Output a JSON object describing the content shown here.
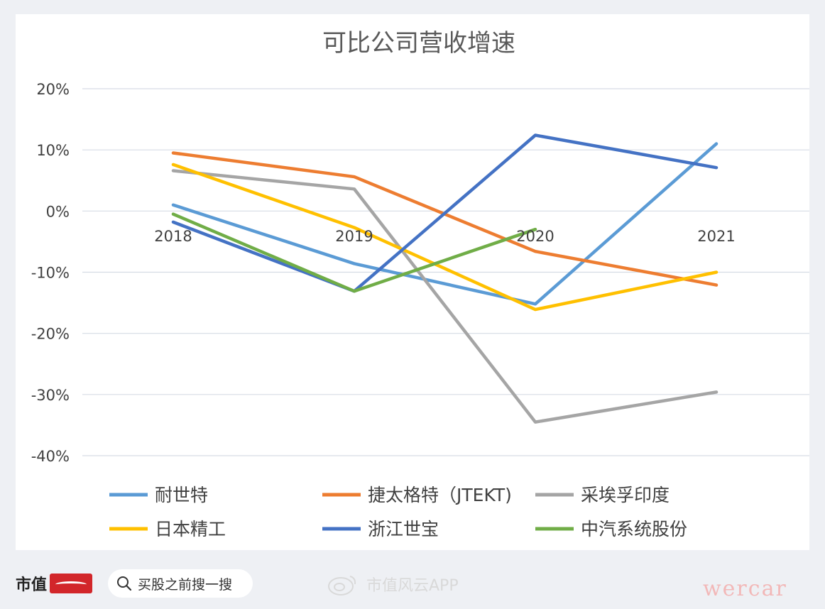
{
  "chart_data": {
    "type": "line",
    "title": "可比公司营收增速",
    "categories": [
      "2018",
      "2019",
      "2020",
      "2021"
    ],
    "ylim": [
      -40,
      20
    ],
    "yticks": [
      20,
      10,
      0,
      -10,
      -20,
      -30,
      -40
    ],
    "ytick_labels": [
      "20%",
      "10%",
      "0%",
      "-10%",
      "-20%",
      "-30%",
      "-40%"
    ],
    "grid": true,
    "legend_position": "bottom",
    "series": [
      {
        "name": "耐世特",
        "color": "#5b9bd5",
        "values": [
          1.0,
          -8.6,
          -15.2,
          11.0
        ]
      },
      {
        "name": "捷太格特（JTEKT)",
        "color": "#ed7d31",
        "values": [
          9.5,
          5.6,
          -6.6,
          -12.1
        ]
      },
      {
        "name": "采埃孚印度",
        "color": "#a5a5a5",
        "values": [
          6.6,
          3.6,
          -34.5,
          -29.6
        ]
      },
      {
        "name": "日本精工",
        "color": "#ffc000",
        "values": [
          7.6,
          -2.7,
          -16.1,
          -10.0
        ]
      },
      {
        "name": "浙江世宝",
        "color": "#4472c4",
        "values": [
          -1.8,
          -13.1,
          12.4,
          7.1
        ]
      },
      {
        "name": "中汽系统股份",
        "color": "#70ad47",
        "values": [
          -0.5,
          -13.1,
          -3.0,
          null
        ]
      }
    ]
  },
  "footer": {
    "brand": "市值",
    "search_placeholder": "买股之前搜一搜",
    "weibo_account": "市值风云APP",
    "corner_mark": "wercar"
  },
  "icons": {
    "search": "search-icon",
    "weibo": "weibo-icon",
    "brand_mark": "brand-mark-icon"
  }
}
